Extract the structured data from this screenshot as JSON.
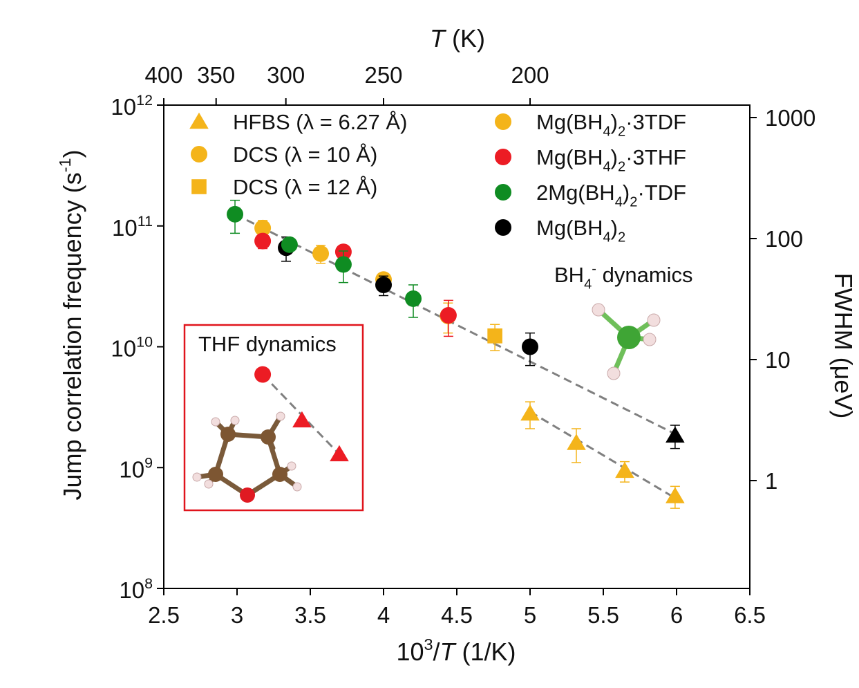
{
  "chart_data": {
    "type": "scatter",
    "xlabel": [
      {
        "text": "10"
      },
      {
        "text": "3",
        "style": "sup"
      },
      {
        "text": "/"
      },
      {
        "text": "T",
        "style": "italic"
      },
      {
        "text": " (1/K)"
      }
    ],
    "ylabel": [
      {
        "text": "Jump correlation frequency (s"
      },
      {
        "text": "-1",
        "style": "sup"
      },
      {
        "text": ")"
      }
    ],
    "x2label": [
      {
        "text": "T",
        "style": "italic"
      },
      {
        "text": " (K)"
      }
    ],
    "y2label": [
      {
        "text": "FWHM (μeV)"
      }
    ],
    "xlim": [
      2.5,
      6.5
    ],
    "xticks": [
      2.5,
      3.0,
      3.5,
      4.0,
      4.5,
      5.0,
      5.5,
      6.0,
      6.5
    ],
    "ylim": [
      100000000,
      1000000000000
    ],
    "yscale": "log",
    "yticks": [
      {
        "value": 100000000,
        "label": [
          {
            "text": "10"
          },
          {
            "text": "8",
            "style": "sup"
          }
        ]
      },
      {
        "value": 1000000000,
        "label": [
          {
            "text": "10"
          },
          {
            "text": "9",
            "style": "sup"
          }
        ]
      },
      {
        "value": 10000000000,
        "label": [
          {
            "text": "10"
          },
          {
            "text": "10",
            "style": "sup"
          }
        ]
      },
      {
        "value": 100000000000,
        "label": [
          {
            "text": "10"
          },
          {
            "text": "11",
            "style": "sup"
          }
        ]
      },
      {
        "value": 1000000000000,
        "label": [
          {
            "text": "10"
          },
          {
            "text": "12",
            "style": "sup"
          }
        ]
      }
    ],
    "x2scale": "reciprocal",
    "x2lim": [
      400,
      153.85
    ],
    "x2ticks": [
      400,
      350,
      300,
      250,
      200
    ],
    "y2scale": "log",
    "y2lim": [
      0.1285,
      1267
    ],
    "y2ticks": [
      1,
      10,
      100,
      1000
    ],
    "legend_instruments": {
      "color": "#f4b41a",
      "entries": [
        {
          "marker": "triangle",
          "name": [
            {
              "text": "HFBS (λ = 6.27 Å)"
            }
          ]
        },
        {
          "marker": "circle",
          "name": [
            {
              "text": "DCS (λ = 10 Å)"
            }
          ]
        },
        {
          "marker": "square",
          "name": [
            {
              "text": "DCS (λ = 12 Å)"
            }
          ]
        }
      ]
    },
    "series": [
      {
        "name": [
          {
            "text": "Mg(BH"
          },
          {
            "text": "4",
            "style": "sub"
          },
          {
            "text": ")"
          },
          {
            "text": "2",
            "style": "sub"
          },
          {
            "text": "·3TDF"
          }
        ],
        "color": "#f4b41a",
        "x": [
          3.175,
          3.571,
          4.0,
          4.44,
          4.76,
          5.0,
          5.316,
          5.646,
          5.99
        ],
        "values": [
          96000000000,
          59000000000,
          36000000000,
          18000000000,
          12300000000,
          2800000000,
          1600000000,
          940000000,
          580000000
        ],
        "errors": [
          15000000000,
          10000000000,
          4000000000,
          5000000000,
          3000000000,
          700000000,
          500000000,
          180000000,
          120000000
        ],
        "markers": [
          "circle",
          "circle",
          "circle",
          "circle",
          "square",
          "triangle",
          "triangle",
          "triangle",
          "triangle"
        ]
      },
      {
        "name": [
          {
            "text": "Mg(BH"
          },
          {
            "text": "4",
            "style": "sub"
          },
          {
            "text": ")"
          },
          {
            "text": "2",
            "style": "sub"
          },
          {
            "text": "·3THF"
          }
        ],
        "color": "#ec1c24",
        "x": [
          3.175,
          3.726,
          4.443
        ],
        "values": [
          75000000000,
          61000000000,
          18200000000
        ],
        "errors": [
          10000000000,
          8000000000,
          6000000000
        ],
        "markers": [
          "circle",
          "circle",
          "circle"
        ]
      },
      {
        "name": [
          {
            "text": "2Mg(BH"
          },
          {
            "text": "4",
            "style": "sub"
          },
          {
            "text": ")"
          },
          {
            "text": "2",
            "style": "sub"
          },
          {
            "text": "·TDF"
          }
        ],
        "color": "#0f8c22",
        "x": [
          2.986,
          3.358,
          3.726,
          4.203
        ],
        "values": [
          125000000000,
          70000000000,
          48000000000,
          25000000000
        ],
        "errors": [
          38000000000,
          6000000000,
          14000000000,
          7500000000
        ],
        "markers": [
          "circle",
          "circle",
          "circle",
          "circle"
        ]
      },
      {
        "name": [
          {
            "text": "Mg(BH"
          },
          {
            "text": "4",
            "style": "sub"
          },
          {
            "text": ")"
          },
          {
            "text": "2",
            "style": "sub"
          }
        ],
        "color": "#000000",
        "x": [
          3.335,
          4.0,
          5.0,
          5.99
        ],
        "values": [
          66000000000,
          32500000000,
          10000000000,
          1840000000
        ],
        "errors": [
          15000000000,
          6000000000,
          3000000000,
          400000000
        ],
        "markers": [
          "circle",
          "circle",
          "circle",
          "triangle"
        ]
      }
    ],
    "draw_order": [
      0,
      3,
      1,
      2
    ],
    "thf_dynamics": {
      "title": "THF dynamics",
      "color": "#ec1c24",
      "x": [
        3.175,
        3.443,
        3.698
      ],
      "values": [
        5900000000,
        2460000000,
        1290000000
      ],
      "markers": [
        "circle",
        "triangle",
        "triangle"
      ]
    },
    "bh4_annotation": [
      {
        "text": "BH"
      },
      {
        "text": "4",
        "style": "sub"
      },
      {
        "text": "-",
        "style": "sup"
      },
      {
        "text": " dynamics"
      }
    ],
    "fit_color": "#808080",
    "fits": [
      {
        "x": [
          2.986,
          5.99
        ],
        "values": [
          125000000000,
          1900000000
        ]
      },
      {
        "x": [
          5.0,
          5.99
        ],
        "values": [
          2900000000,
          560000000
        ]
      },
      {
        "x": [
          3.175,
          3.698
        ],
        "values": [
          5900000000,
          1290000000
        ]
      }
    ]
  }
}
